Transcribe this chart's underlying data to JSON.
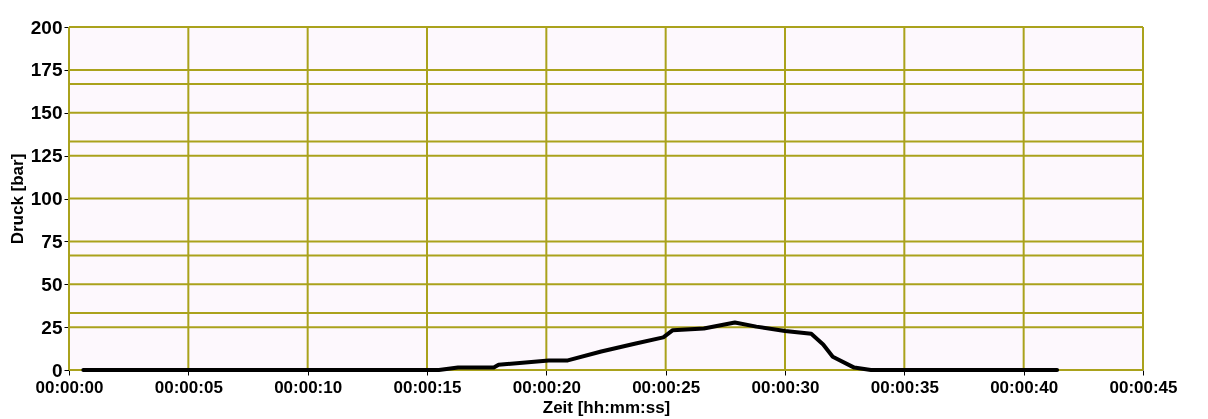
{
  "chart_data": {
    "type": "line",
    "xlabel": "Zeit [hh:mm:ss]",
    "ylabel": "Druck  [bar]",
    "x": [
      0.6,
      15.5,
      16.3,
      17.8,
      18.0,
      20.1,
      20.9,
      22.3,
      23.7,
      24.9,
      25.3,
      26.6,
      27.9,
      28.8,
      30.0,
      31.1,
      31.6,
      32.0,
      32.9,
      33.6,
      41.4
    ],
    "series": [
      {
        "color": "#000000",
        "values": [
          0,
          0,
          1.4,
          1.4,
          3.0,
          5.6,
          5.6,
          10.8,
          15.3,
          19,
          23.2,
          24.2,
          27.7,
          25.3,
          22.8,
          21.1,
          14.9,
          7.7,
          1.4,
          0,
          0
        ]
      }
    ],
    "xlim": [
      0,
      45
    ],
    "xticks": [
      {
        "value": 0,
        "label": "00:00:00"
      },
      {
        "value": 5,
        "label": "00:00:05"
      },
      {
        "value": 10,
        "label": "00:00:10"
      },
      {
        "value": 15,
        "label": "00:00:15"
      },
      {
        "value": 20,
        "label": "00:00:20"
      },
      {
        "value": 25,
        "label": "00:00:25"
      },
      {
        "value": 30,
        "label": "00:00:30"
      },
      {
        "value": 35,
        "label": "00:00:35"
      },
      {
        "value": 40,
        "label": "00:00:40"
      },
      {
        "value": 45,
        "label": "00:00:45"
      }
    ],
    "ylim": [
      0,
      200
    ],
    "yticks": [
      0,
      25,
      {
        "value": 33.3,
        "label": null
      },
      50,
      {
        "value": 66.7,
        "label": null
      },
      75,
      100,
      125,
      {
        "value": 133.3,
        "label": null
      },
      150,
      {
        "value": 166.7,
        "label": null
      },
      175,
      200
    ],
    "grid": true,
    "legend": false,
    "marker": "none",
    "line_style": "solid"
  }
}
